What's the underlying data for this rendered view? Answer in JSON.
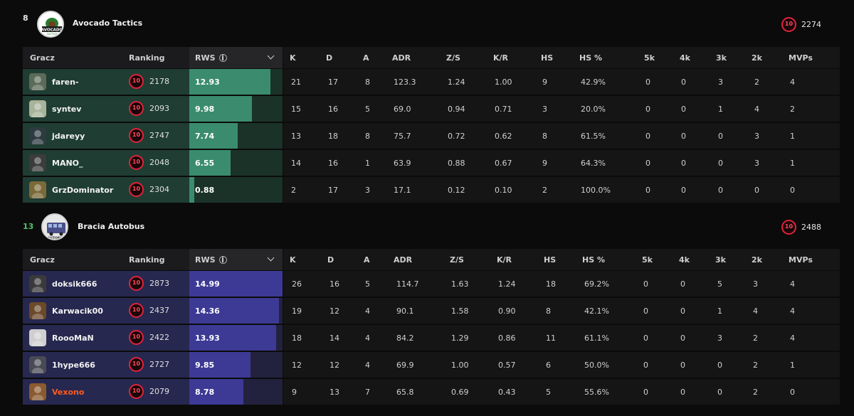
{
  "columns": {
    "player": "Gracz",
    "ranking": "Ranking",
    "rws": "RWS",
    "k": "K",
    "d": "D",
    "a": "A",
    "adr": "ADR",
    "zs": "Z/S",
    "kr": "K/R",
    "hs": "HS",
    "hs_pct": "HS %",
    "k5": "5k",
    "k4": "4k",
    "k3": "3k",
    "k2": "2k",
    "mvps": "MVPs"
  },
  "icons": {
    "level": "faceit-level-10-icon",
    "info": "info-icon",
    "sort": "chevron-down-icon"
  },
  "colors": {
    "team1_row": "#1f3d33",
    "team1_bar": "#3b8c6f",
    "team2_row": "#26284f",
    "team2_bar": "#3d3a95",
    "level_ring": "#e0233c",
    "win_score": "#4ec46c",
    "highlight_name": "#ff5a1f"
  },
  "teams": [
    {
      "score": "8",
      "name": "Avocado Tactics",
      "logo_text": "AVOCADO",
      "elo": "2274",
      "players": [
        {
          "name": "faren-",
          "elo": "2178",
          "rws": "12.93",
          "rws_fill": 0.87,
          "k": "21",
          "d": "17",
          "a": "8",
          "adr": "123.3",
          "zs": "1.24",
          "kr": "1.00",
          "hs": "9",
          "hs_pct": "42.9%",
          "k5": "0",
          "k4": "0",
          "k3": "3",
          "k2": "2",
          "mvps": "4"
        },
        {
          "name": "syntev",
          "elo": "2093",
          "rws": "9.98",
          "rws_fill": 0.67,
          "k": "15",
          "d": "16",
          "a": "5",
          "adr": "69.0",
          "zs": "0.94",
          "kr": "0.71",
          "hs": "3",
          "hs_pct": "20.0%",
          "k5": "0",
          "k4": "0",
          "k3": "1",
          "k2": "4",
          "mvps": "2"
        },
        {
          "name": "jdareyy",
          "elo": "2747",
          "rws": "7.74",
          "rws_fill": 0.52,
          "k": "13",
          "d": "18",
          "a": "8",
          "adr": "75.7",
          "zs": "0.72",
          "kr": "0.62",
          "hs": "8",
          "hs_pct": "61.5%",
          "k5": "0",
          "k4": "0",
          "k3": "0",
          "k2": "3",
          "mvps": "1"
        },
        {
          "name": "MANO_",
          "elo": "2048",
          "rws": "6.55",
          "rws_fill": 0.44,
          "k": "14",
          "d": "16",
          "a": "1",
          "adr": "63.9",
          "zs": "0.88",
          "kr": "0.67",
          "hs": "9",
          "hs_pct": "64.3%",
          "k5": "0",
          "k4": "0",
          "k3": "0",
          "k2": "3",
          "mvps": "1"
        },
        {
          "name": "GrzDominator",
          "elo": "2304",
          "rws": "0.88",
          "rws_fill": 0.05,
          "k": "2",
          "d": "17",
          "a": "3",
          "adr": "17.1",
          "zs": "0.12",
          "kr": "0.10",
          "hs": "2",
          "hs_pct": "100.0%",
          "k5": "0",
          "k4": "0",
          "k3": "0",
          "k2": "0",
          "mvps": "0"
        }
      ]
    },
    {
      "score": "13",
      "name": "Bracia Autobus",
      "logo_text": "AUTOBUS",
      "elo": "2488",
      "players": [
        {
          "name": "doksik666",
          "elo": "2873",
          "rws": "14.99",
          "rws_fill": 1.0,
          "k": "26",
          "d": "16",
          "a": "5",
          "adr": "114.7",
          "zs": "1.63",
          "kr": "1.24",
          "hs": "18",
          "hs_pct": "69.2%",
          "k5": "0",
          "k4": "0",
          "k3": "5",
          "k2": "3",
          "mvps": "4"
        },
        {
          "name": "Karwacik00",
          "elo": "2437",
          "rws": "14.36",
          "rws_fill": 0.96,
          "k": "19",
          "d": "12",
          "a": "4",
          "adr": "90.1",
          "zs": "1.58",
          "kr": "0.90",
          "hs": "8",
          "hs_pct": "42.1%",
          "k5": "0",
          "k4": "0",
          "k3": "1",
          "k2": "4",
          "mvps": "4"
        },
        {
          "name": "RoooMaN",
          "elo": "2422",
          "rws": "13.93",
          "rws_fill": 0.93,
          "k": "18",
          "d": "14",
          "a": "4",
          "adr": "84.2",
          "zs": "1.29",
          "kr": "0.86",
          "hs": "11",
          "hs_pct": "61.1%",
          "k5": "0",
          "k4": "0",
          "k3": "3",
          "k2": "2",
          "mvps": "4"
        },
        {
          "name": "1hype666",
          "elo": "2727",
          "rws": "9.85",
          "rws_fill": 0.66,
          "k": "12",
          "d": "12",
          "a": "4",
          "adr": "69.9",
          "zs": "1.00",
          "kr": "0.57",
          "hs": "6",
          "hs_pct": "50.0%",
          "k5": "0",
          "k4": "0",
          "k3": "0",
          "k2": "2",
          "mvps": "1"
        },
        {
          "name": "Vexono",
          "elo": "2079",
          "rws": "8.78",
          "rws_fill": 0.58,
          "k": "9",
          "d": "13",
          "a": "7",
          "adr": "65.8",
          "zs": "0.69",
          "kr": "0.43",
          "hs": "5",
          "hs_pct": "55.6%",
          "k5": "0",
          "k4": "0",
          "k3": "0",
          "k2": "2",
          "mvps": "0",
          "highlight": true
        }
      ]
    }
  ]
}
